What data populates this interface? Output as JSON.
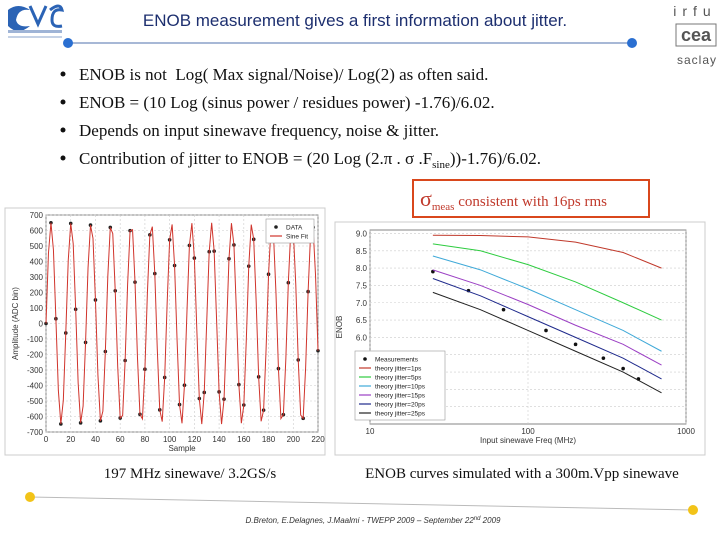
{
  "header": {
    "title": "ENOB measurement gives a first information about jitter.",
    "logo_right": [
      "irfu",
      "cea",
      "saclay"
    ]
  },
  "bullets": [
    "ENOB is not  Log( Max signal/Noise)/ Log(2) as often said.",
    "ENOB = (10 Log (sinus power / residues power) -1.76)/6.02.",
    "Depends on input sinewave frequency, noise & jitter.",
    {
      "before": "Contribution of jitter to ENOB = (20 Log (2.π . σ .F",
      "sub": "sine",
      "after": "))-1.76)/6.02."
    }
  ],
  "callout": {
    "symbol": "σ",
    "sub": "meas",
    "after": " consistent with 16ps rms"
  },
  "captions": [
    "197 MHz sinewave/ 3.2GS/s",
    "ENOB curves simulated with a 300m.Vpp sinewave"
  ],
  "footer": {
    "before": "D.Breton, E.Delagnes, J.Maalmi - TWEPP 2009 – September 22",
    "sup": "nd",
    "after": " 2009"
  },
  "chart_data": [
    {
      "type": "line",
      "xlabel": "Sample",
      "ylabel": "Amplitude (ADC bin)",
      "xlim": [
        0,
        220
      ],
      "ylim": [
        -700,
        700
      ],
      "xticks": [
        0,
        20,
        40,
        60,
        80,
        100,
        120,
        140,
        160,
        180,
        200,
        220
      ],
      "yticks": [
        -700,
        -600,
        -500,
        -400,
        -300,
        -200,
        -100,
        0,
        100,
        200,
        300,
        400,
        500,
        600,
        700
      ],
      "grid": true,
      "legend": "upper right",
      "series": [
        {
          "name": "DATA",
          "color": "#222222",
          "style": "markers",
          "x": [
            0,
            4,
            8,
            12,
            16,
            20,
            24,
            28,
            32,
            36,
            40,
            44,
            48,
            52,
            56,
            60,
            64,
            68,
            72,
            76,
            80,
            84,
            88,
            92,
            96,
            100,
            104,
            108,
            112,
            116,
            120,
            124,
            128,
            132,
            136,
            140,
            144,
            148,
            152,
            156,
            160,
            164,
            168,
            172,
            176,
            180,
            184,
            188,
            192,
            196,
            200,
            204,
            208,
            212,
            216,
            220
          ],
          "values": [
            0,
            650,
            31,
            -648,
            -61,
            646,
            92,
            -641,
            -122,
            635,
            152,
            -628,
            -181,
            620,
            211,
            -610,
            -239,
            599,
            267,
            -586,
            -295,
            572,
            322,
            -557,
            -348,
            540,
            374,
            -523,
            -398,
            504,
            422,
            -484,
            -445,
            463,
            467,
            -441,
            -488,
            418,
            507,
            -394,
            -526,
            370,
            543,
            -344,
            -559,
            318,
            574,
            -291,
            -588,
            263,
            601,
            -235,
            -612,
            206,
            621,
            -176
          ]
        },
        {
          "name": "Sine Fit",
          "color": "#d0342c",
          "style": "line",
          "x": [
            0,
            2,
            4,
            6,
            8,
            10,
            12,
            14,
            16,
            18,
            20,
            22,
            24,
            26,
            28,
            30,
            32,
            34,
            36,
            38,
            40,
            42,
            44,
            46,
            48,
            50,
            52,
            54,
            56,
            58,
            60,
            62,
            64,
            66,
            68,
            70,
            72,
            74,
            76,
            78,
            80,
            82,
            84,
            86,
            88,
            90,
            92,
            94,
            96,
            98,
            100,
            102,
            104,
            106,
            108,
            110,
            112,
            114,
            116,
            118,
            120,
            122,
            124,
            126,
            128,
            130,
            132,
            134,
            136,
            138,
            140,
            142,
            144,
            146,
            148,
            150,
            152,
            154,
            156,
            158,
            160,
            162,
            164,
            166,
            168,
            170,
            172,
            174,
            176,
            178,
            180,
            182,
            184,
            186,
            188,
            190,
            192,
            194,
            196,
            198,
            200,
            202,
            204,
            206,
            208,
            210,
            212,
            214,
            216,
            218,
            220
          ],
          "values": [
            0,
            454,
            650,
            476,
            31,
            -432,
            -648,
            -496,
            -61,
            408,
            646,
            515,
            92,
            -384,
            -641,
            -533,
            -122,
            359,
            635,
            550,
            152,
            -333,
            -628,
            -566,
            -181,
            306,
            620,
            580,
            211,
            -279,
            -610,
            -593,
            -239,
            251,
            599,
            605,
            267,
            -223,
            -586,
            -616,
            -295,
            194,
            572,
            625,
            322,
            -164,
            -557,
            -633,
            -348,
            134,
            540,
            639,
            374,
            -104,
            -523,
            -644,
            -398,
            74,
            504,
            647,
            422,
            -43,
            -484,
            -649,
            -445,
            13,
            463,
            650,
            467,
            18,
            -441,
            -649,
            -488,
            -48,
            418,
            647,
            507,
            79,
            -394,
            -643,
            -526,
            -109,
            370,
            638,
            543,
            139,
            -344,
            -631,
            -559,
            -169,
            318,
            623,
            574,
            198,
            -291,
            -614,
            -588,
            -227,
            263,
            603,
            601,
            256,
            -235,
            -591,
            -612,
            -284,
            206,
            578,
            621,
            311,
            -176
          ]
        }
      ]
    },
    {
      "type": "line",
      "xlabel": "Input sinewave Freq (MHz)",
      "ylabel": "ENOB",
      "xlog": true,
      "xlim": [
        10,
        1000
      ],
      "ylim": [
        3.5,
        9.1
      ],
      "xticks": [
        10,
        100,
        1000
      ],
      "yticks": [
        {
          "value": 4,
          "label": "4.0"
        },
        4.5,
        {
          "value": 5,
          "label": "5.0"
        },
        5.5,
        {
          "value": 6,
          "label": "6.0"
        },
        6.5,
        {
          "value": 7,
          "label": "7.0"
        },
        7.5,
        {
          "value": 8,
          "label": "8.0"
        },
        8.5,
        {
          "value": 9,
          "label": "9.0"
        }
      ],
      "grid": true,
      "legend": "lower left",
      "series": [
        {
          "name": "Measurements",
          "color": "#111111",
          "style": "markers",
          "x": [
            25,
            42,
            70,
            130,
            200,
            300,
            400,
            500
          ],
          "values": [
            7.9,
            7.35,
            6.8,
            6.2,
            5.8,
            5.4,
            5.1,
            4.8
          ]
        },
        {
          "name": "theory jitter=1ps",
          "color": "#c0392b",
          "style": "line",
          "x": [
            25,
            50,
            100,
            200,
            400,
            700
          ],
          "values": [
            8.95,
            8.94,
            8.9,
            8.75,
            8.45,
            8.0
          ]
        },
        {
          "name": "theory jitter=5ps",
          "color": "#2ecc40",
          "style": "line",
          "x": [
            25,
            50,
            100,
            200,
            400,
            700
          ],
          "values": [
            8.7,
            8.5,
            8.1,
            7.6,
            7.0,
            6.5
          ]
        },
        {
          "name": "theory jitter=10ps",
          "color": "#3fa9d8",
          "style": "line",
          "x": [
            25,
            50,
            100,
            200,
            400,
            700
          ],
          "values": [
            8.35,
            7.95,
            7.4,
            6.8,
            6.2,
            5.6
          ]
        },
        {
          "name": "theory jitter=15ps",
          "color": "#9b3fc4",
          "style": "line",
          "x": [
            25,
            50,
            100,
            200,
            400,
            700
          ],
          "values": [
            7.95,
            7.5,
            6.95,
            6.35,
            5.8,
            5.2
          ]
        },
        {
          "name": "theory jitter=20ps",
          "color": "#1f2a8c",
          "style": "line",
          "x": [
            25,
            50,
            100,
            200,
            400,
            700
          ],
          "values": [
            7.7,
            7.2,
            6.6,
            6.0,
            5.4,
            4.8
          ]
        },
        {
          "name": "theory jitter=25ps",
          "color": "#222222",
          "style": "line",
          "x": [
            25,
            50,
            100,
            200,
            400,
            700
          ],
          "values": [
            7.3,
            6.8,
            6.2,
            5.6,
            5.0,
            4.4
          ]
        }
      ]
    }
  ]
}
